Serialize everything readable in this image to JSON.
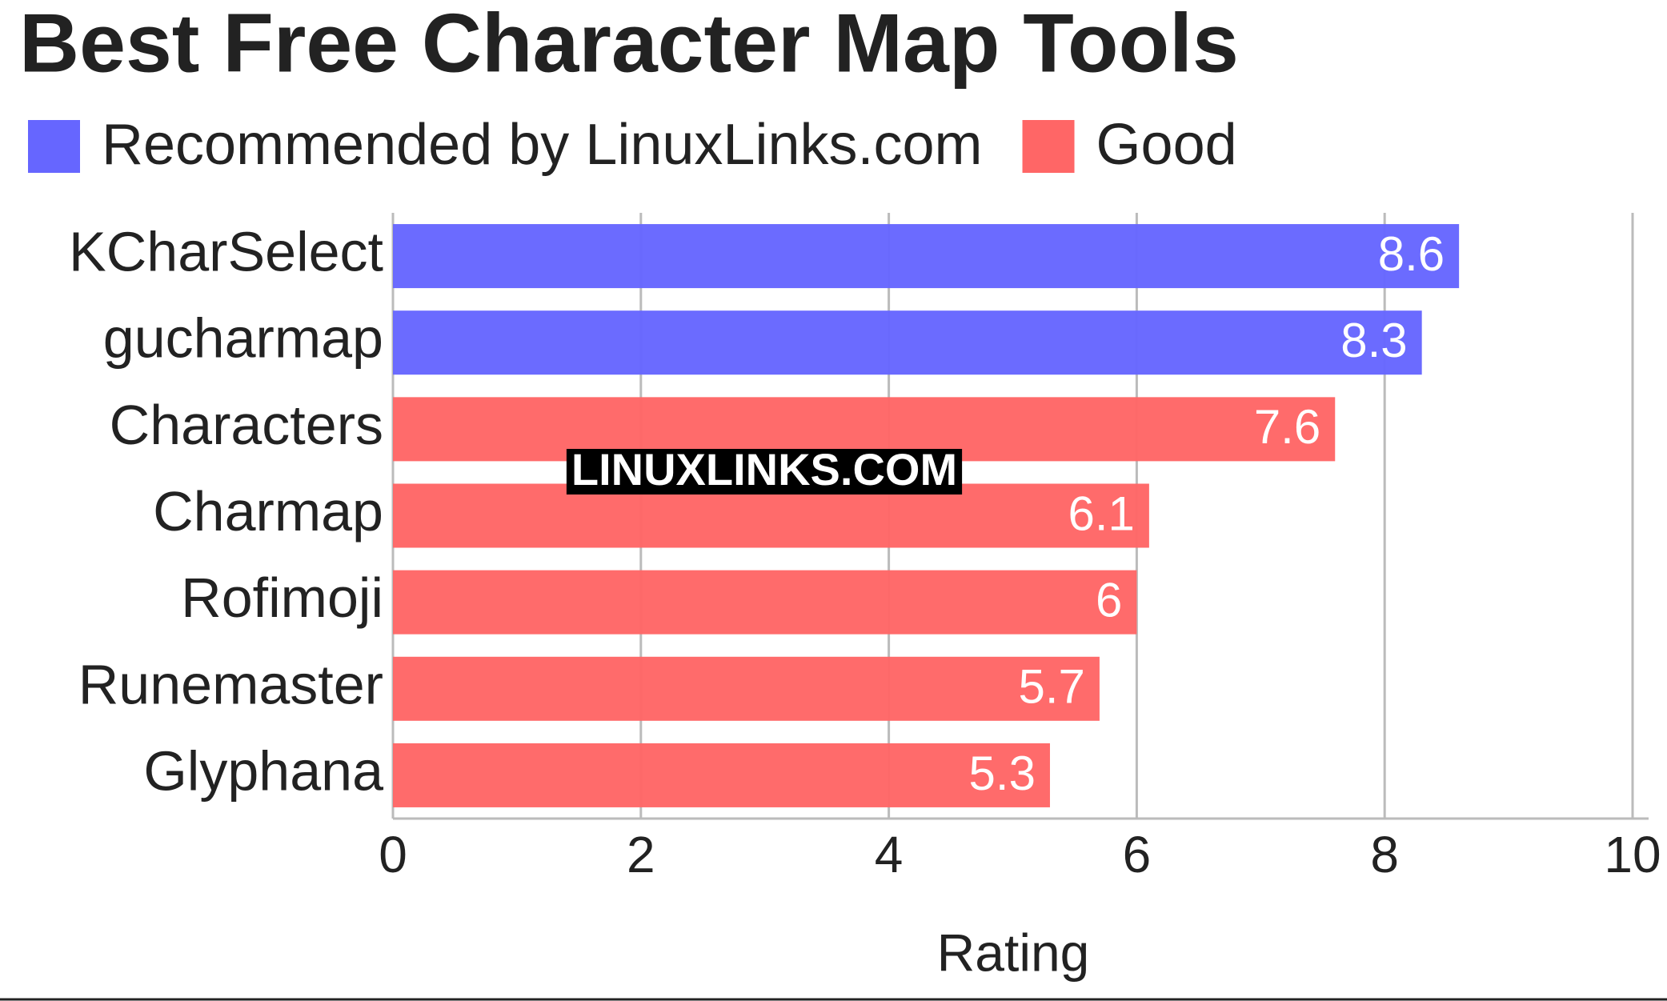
{
  "chart_data": {
    "type": "bar",
    "orientation": "horizontal",
    "title": "Best Free Character Map Tools",
    "categories": [
      "KCharSelect",
      "gucharmap",
      "Characters",
      "Charmap",
      "Rofimoji",
      "Runemaster",
      "Glyphana"
    ],
    "series": [
      {
        "name": "Recommended by LinuxLinks.com",
        "color": "#6666ff",
        "values": [
          8.6,
          8.3,
          null,
          null,
          null,
          null,
          null
        ]
      },
      {
        "name": "Good",
        "color": "#ff6666",
        "values": [
          null,
          null,
          7.6,
          6.1,
          6,
          5.7,
          5.3
        ]
      }
    ],
    "xlim": [
      0,
      10
    ],
    "xticks": [
      0,
      2,
      4,
      6,
      8,
      10
    ],
    "grid": true,
    "xlabel": "Rating",
    "legend": "top-left",
    "watermark": "LINUXLINKS.COM"
  }
}
